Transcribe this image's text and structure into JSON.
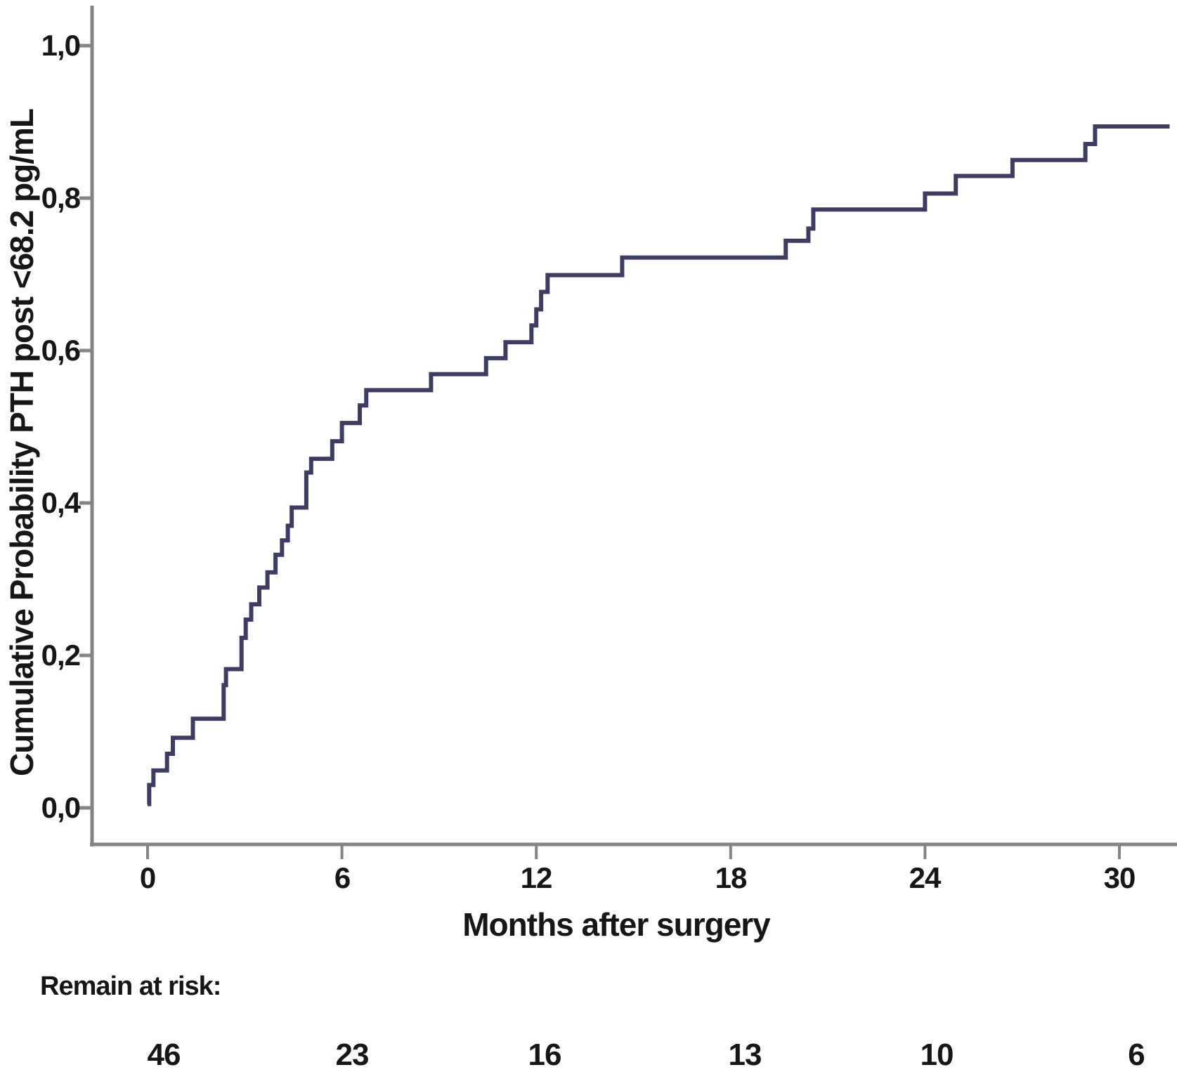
{
  "chart_data": {
    "type": "line",
    "subtype": "kaplan_meier_step_curve",
    "title": "",
    "xlabel": "Months after surgery",
    "ylabel": "Cumulative Probability PTH post <68.2 pg/mL",
    "xticks": [
      0,
      6,
      12,
      18,
      24,
      30
    ],
    "xtick_labels": [
      "0",
      "6",
      "12",
      "18",
      "24",
      "30"
    ],
    "ytick_values": [
      0.0,
      0.2,
      0.4,
      0.6,
      0.8,
      1.0
    ],
    "ytick_labels": [
      "0,0",
      "0,2",
      "0,4",
      "0,6",
      "0,8",
      "1,0"
    ],
    "xlim": [
      -1.7,
      31.8
    ],
    "ylim": [
      -0.05,
      1.05
    ],
    "grid": false,
    "legend": null,
    "line_color": "#3d3d64",
    "axis_color": "#848484",
    "curve_start": [
      0,
      0.005
    ],
    "curve_end_month": 31.55,
    "steps": [
      [
        0.0,
        0.005
      ],
      [
        0.05,
        0.03
      ],
      [
        0.18,
        0.049
      ],
      [
        0.6,
        0.071
      ],
      [
        0.78,
        0.092
      ],
      [
        1.4,
        0.117
      ],
      [
        2.35,
        0.161
      ],
      [
        2.42,
        0.182
      ],
      [
        2.9,
        0.223
      ],
      [
        3.03,
        0.247
      ],
      [
        3.2,
        0.267
      ],
      [
        3.45,
        0.289
      ],
      [
        3.7,
        0.309
      ],
      [
        3.95,
        0.332
      ],
      [
        4.15,
        0.351
      ],
      [
        4.33,
        0.37
      ],
      [
        4.45,
        0.394
      ],
      [
        4.9,
        0.44
      ],
      [
        5.05,
        0.458
      ],
      [
        5.7,
        0.481
      ],
      [
        6.0,
        0.505
      ],
      [
        6.55,
        0.528
      ],
      [
        6.75,
        0.548
      ],
      [
        8.75,
        0.569
      ],
      [
        10.45,
        0.59
      ],
      [
        11.05,
        0.611
      ],
      [
        11.85,
        0.633
      ],
      [
        12.0,
        0.654
      ],
      [
        12.15,
        0.677
      ],
      [
        12.35,
        0.699
      ],
      [
        14.65,
        0.722
      ],
      [
        19.7,
        0.744
      ],
      [
        20.4,
        0.76
      ],
      [
        20.55,
        0.785
      ],
      [
        24.0,
        0.806
      ],
      [
        24.95,
        0.829
      ],
      [
        26.7,
        0.85
      ],
      [
        28.95,
        0.871
      ],
      [
        29.25,
        0.894
      ]
    ]
  },
  "risk_table": {
    "label": "Remain at risk:",
    "values": [
      "46",
      "23",
      "16",
      "13",
      "10",
      "6"
    ],
    "months": [
      0,
      6,
      12,
      18,
      24,
      30
    ]
  }
}
